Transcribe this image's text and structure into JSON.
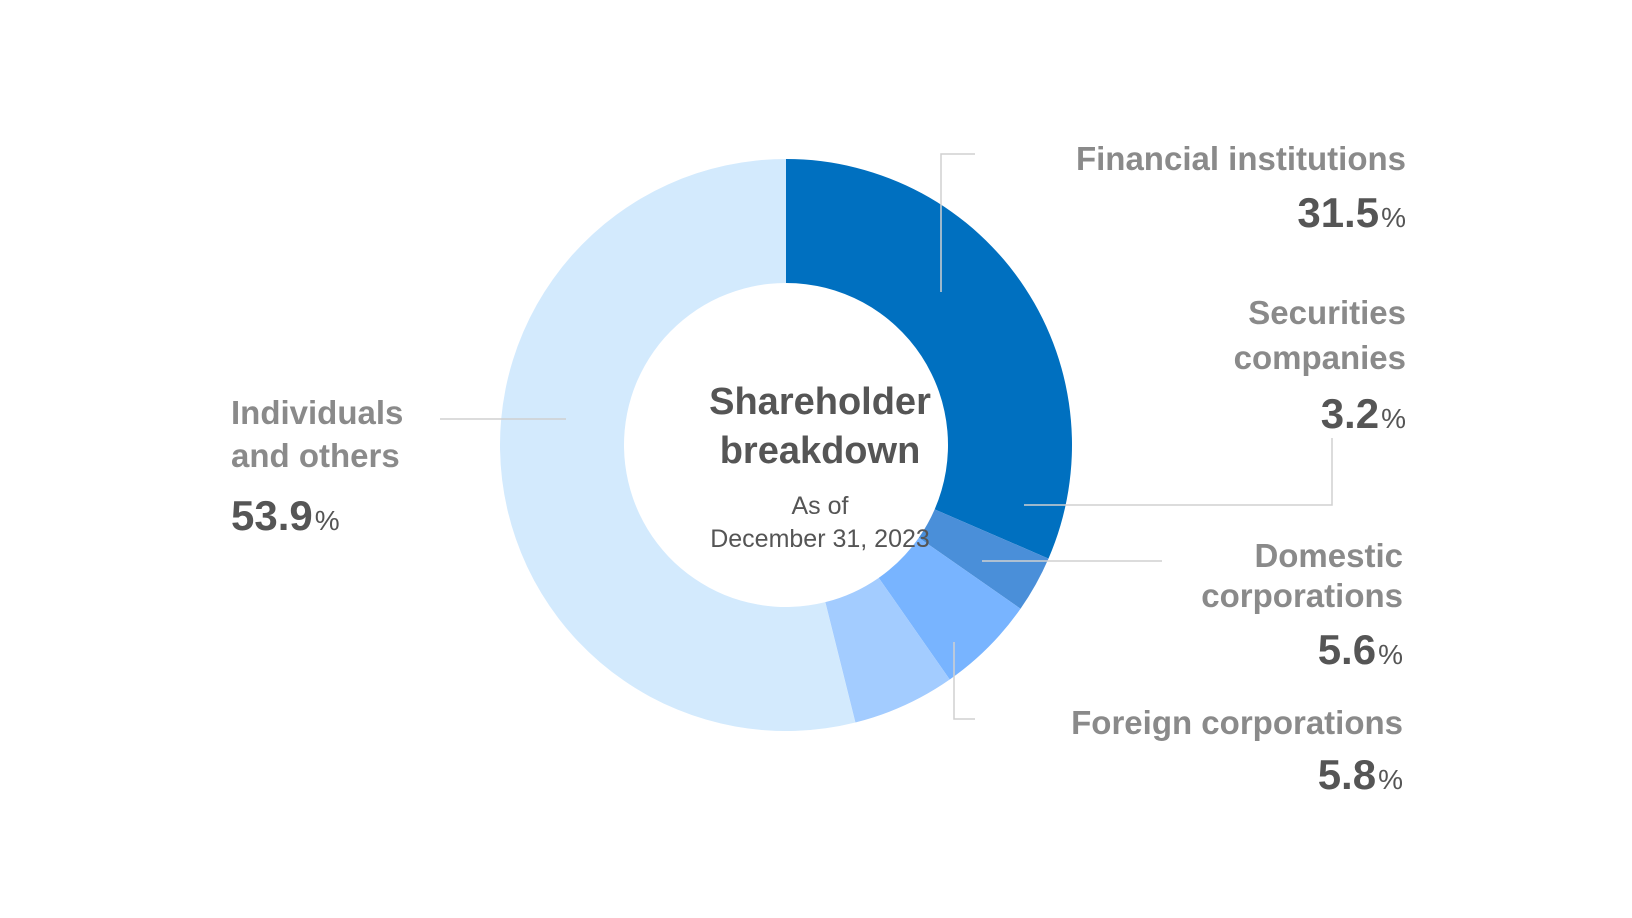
{
  "chart_data": {
    "type": "pie",
    "variant": "donut",
    "title": "Shareholder breakdown",
    "subtitle_line1": "As of",
    "subtitle_line2": "December 31, 2023",
    "unit": "%",
    "slices": [
      {
        "name": "Financial institutions",
        "value": 31.5,
        "value_text": "31.5",
        "color": "#0070c0"
      },
      {
        "name": "Securities companies",
        "value": 3.2,
        "value_text": "3.2",
        "color": "#4a8fd9"
      },
      {
        "name": "Domestic corporations",
        "value": 5.6,
        "value_text": "5.6",
        "color": "#78b4ff"
      },
      {
        "name": "Foreign corporations",
        "value": 5.8,
        "value_text": "5.8",
        "color": "#a3ccff"
      },
      {
        "name": "Individuals and others",
        "value": 53.9,
        "value_text": "53.9",
        "color": "#d3eafd"
      }
    ],
    "label_lines": {
      "financial": [
        "Financial institutions"
      ],
      "securities": [
        "Securities",
        "companies"
      ],
      "domestic": [
        "Domestic",
        "corporations"
      ],
      "foreign": [
        "Foreign corporations"
      ],
      "individuals": [
        "Individuals",
        "and others"
      ]
    }
  }
}
